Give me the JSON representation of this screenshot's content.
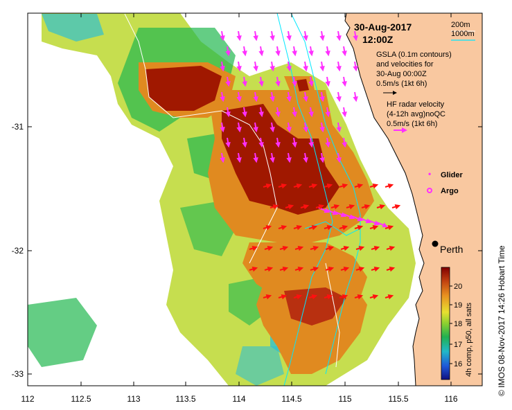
{
  "header": {
    "date": "30-Aug-2017",
    "time": "12:00Z"
  },
  "depth_legend": {
    "contour_shallow": "200m",
    "contour_deep": "1000m"
  },
  "gsla_legend": {
    "line1": "GSLA (0.1m contours)",
    "line2": "and velocities for",
    "line3": "30-Aug 00:00Z",
    "line4": "0.5m/s (1kt 6h)"
  },
  "hf_legend": {
    "line1": "HF radar velocity",
    "line2": "(4-12h avg)noQC",
    "line3": "0.5m/s (1kt 6h)"
  },
  "markers": {
    "glider": "Glider",
    "argo": "Argo"
  },
  "city": {
    "name": "Perth"
  },
  "axes": {
    "x_ticks": [
      "112",
      "112.5",
      "113",
      "113.5",
      "114",
      "114.5",
      "115",
      "115.5",
      "116"
    ],
    "y_ticks": [
      "-31",
      "-32",
      "-33"
    ]
  },
  "colorbar": {
    "ticks": [
      "20",
      "19",
      "18",
      "17",
      "16"
    ],
    "label": "4h comp, p50, all sats"
  },
  "credit": "© IMOS 08-Nov-2017 14:26 Hobart Time",
  "colors": {
    "land": "#f9c8a0",
    "sst_hot": "#a01800",
    "sst_warm": "#e08a20",
    "sst_mid": "#bcd830",
    "sst_cool": "#22b850",
    "sst_cold": "#30c0d0",
    "hf_arrow": "#ff30ff",
    "gsla_arrow": "#ff1010",
    "contour": "#00e8ff"
  }
}
